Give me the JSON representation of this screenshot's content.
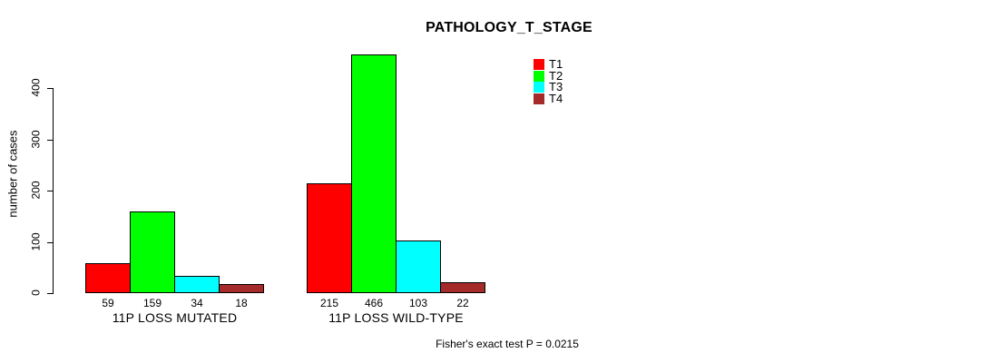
{
  "chart_data": {
    "type": "bar",
    "title": "PATHOLOGY_T_STAGE",
    "ylabel": "number of cases",
    "xlabel": "",
    "categories": [
      "11P LOSS MUTATED",
      "11P LOSS WILD-TYPE"
    ],
    "series": [
      {
        "name": "T1",
        "color": "#ff0000",
        "values": [
          59,
          215
        ]
      },
      {
        "name": "T2",
        "color": "#00ff00",
        "values": [
          159,
          466
        ]
      },
      {
        "name": "T3",
        "color": "#00ffff",
        "values": [
          34,
          103
        ]
      },
      {
        "name": "T4",
        "color": "#a52a2a",
        "values": [
          18,
          22
        ]
      }
    ],
    "yticks": [
      0,
      100,
      200,
      300,
      400
    ],
    "ylim": [
      0,
      466
    ],
    "grid": false,
    "value_labels_shown": true,
    "legend_position": "top-right",
    "annotation": "Fisher's exact test P = 0.0215",
    "bar_border_color": "#000000",
    "background_color": "#ffffff"
  }
}
